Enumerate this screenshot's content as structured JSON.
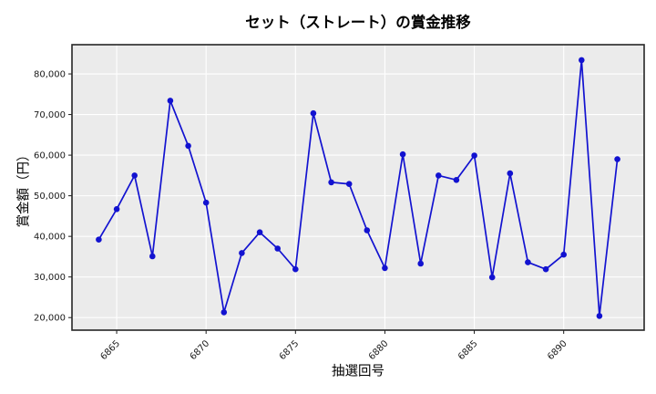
{
  "figure": {
    "title": "セット（ストレート）の賞金推移",
    "xlabel": "抽選回号",
    "ylabel": "賞金額（円）"
  },
  "chart_data": {
    "type": "line",
    "title": "セット（ストレート）の賞金推移",
    "xlabel": "抽選回号",
    "ylabel": "賞金額（円）",
    "x": [
      6864,
      6865,
      6866,
      6867,
      6868,
      6869,
      6870,
      6871,
      6872,
      6873,
      6874,
      6875,
      6876,
      6877,
      6878,
      6879,
      6880,
      6881,
      6882,
      6883,
      6884,
      6885,
      6886,
      6887,
      6888,
      6889,
      6890,
      6891,
      6892,
      6893
    ],
    "series": [
      {
        "name": "賞金額",
        "values": [
          39200,
          46700,
          55000,
          35100,
          73400,
          62300,
          48300,
          21300,
          35900,
          41000,
          37000,
          31900,
          70300,
          53300,
          52900,
          41500,
          32200,
          60200,
          33300,
          55000,
          53900,
          59900,
          29900,
          55500,
          33600,
          31900,
          35500,
          83400,
          20400,
          59000
        ]
      }
    ],
    "xlim": [
      6862.5,
      6894.5
    ],
    "ylim": [
      16900,
      87200
    ],
    "xticks": [
      6865,
      6870,
      6875,
      6880,
      6885,
      6890
    ],
    "xtick_labels": [
      "6865",
      "6870",
      "6875",
      "6880",
      "6885",
      "6890"
    ],
    "yticks": [
      20000,
      30000,
      40000,
      50000,
      60000,
      70000,
      80000
    ],
    "ytick_labels": [
      "20,000",
      "30,000",
      "40,000",
      "50,000",
      "60,000",
      "70,000",
      "80,000"
    ],
    "grid": true,
    "legend": false,
    "x_tick_rotation_deg": 45,
    "style": {
      "line_color": "#1212d0",
      "marker_color": "#1212d0",
      "plot_bg": "#ebebeb",
      "grid_color": "#ffffff",
      "frame_color": "#262626",
      "tick_color": "#1a1a1a",
      "text_color": "#000000"
    }
  }
}
